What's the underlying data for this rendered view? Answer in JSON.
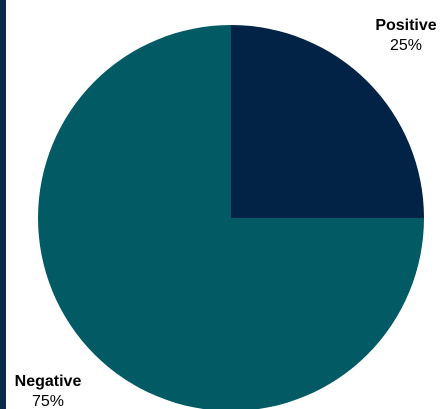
{
  "chart_data": {
    "type": "pie",
    "start_angle_deg": 0,
    "direction": "clockwise",
    "slices": [
      {
        "name": "Positive",
        "value": 25,
        "label": "25%",
        "color": "#022346"
      },
      {
        "name": "Negative",
        "value": 75,
        "label": "75%",
        "color": "#025a65"
      }
    ]
  }
}
